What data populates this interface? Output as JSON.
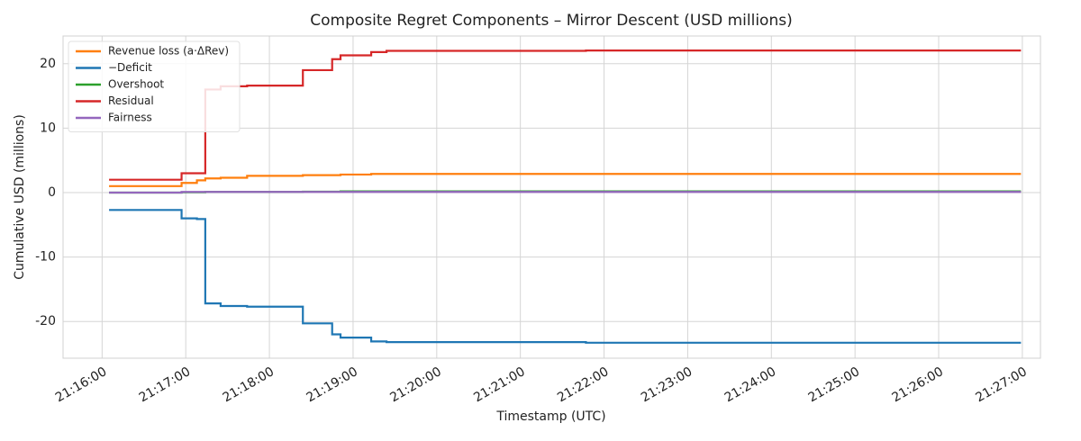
{
  "chart_data": {
    "type": "line",
    "drawstyle": "steps-post",
    "title": "Composite Regret Components – Mirror Descent (USD millions)",
    "xlabel": "Timestamp (UTC)",
    "ylabel": "Cumulative USD (millions)",
    "x": [
      "21:16:05",
      "21:16:57",
      "21:17:08",
      "21:17:14",
      "21:17:25",
      "21:17:44",
      "21:18:24",
      "21:18:45",
      "21:18:51",
      "21:19:13",
      "21:19:24",
      "21:21:47",
      "21:26:59"
    ],
    "series": [
      {
        "name": "Revenue loss (a·ΔRev)",
        "color": "#ff7f0e",
        "values": [
          1.0,
          1.5,
          1.9,
          2.2,
          2.3,
          2.6,
          2.7,
          2.7,
          2.8,
          2.9,
          2.9,
          2.9,
          2.9
        ]
      },
      {
        "name": "−Deficit",
        "color": "#1f77b4",
        "values": [
          -2.7,
          -4.0,
          -4.1,
          -17.2,
          -17.6,
          -17.7,
          -20.3,
          -22.0,
          -22.5,
          -23.1,
          -23.2,
          -23.3,
          -23.3
        ]
      },
      {
        "name": "Overshoot",
        "color": "#2ca02c",
        "values": [
          0,
          0.05,
          0.05,
          0.1,
          0.1,
          0.1,
          0.15,
          0.15,
          0.2,
          0.2,
          0.2,
          0.2,
          0.2
        ]
      },
      {
        "name": "Residual",
        "color": "#d62728",
        "values": [
          2,
          3,
          3,
          16,
          16.5,
          16.6,
          19,
          20.7,
          21.3,
          21.8,
          22,
          22.05,
          22.05
        ]
      },
      {
        "name": "Fairness",
        "color": "#9467bd",
        "values": [
          0,
          0.1,
          0.1,
          0.1,
          0.1,
          0.1,
          0.1,
          0.1,
          0.1,
          0.1,
          0.1,
          0.1,
          0.1
        ]
      }
    ],
    "xlim": [
      "21:15:32",
      "21:27:13"
    ],
    "xticks": [
      "21:16:00",
      "21:17:00",
      "21:18:00",
      "21:19:00",
      "21:20:00",
      "21:21:00",
      "21:22:00",
      "21:23:00",
      "21:24:00",
      "21:25:00",
      "21:26:00",
      "21:27:00"
    ],
    "ylim": [
      -25.7,
      24.3
    ],
    "yticks": [
      -20,
      -10,
      0,
      10,
      20
    ],
    "grid": true,
    "legend": "upper-left"
  }
}
